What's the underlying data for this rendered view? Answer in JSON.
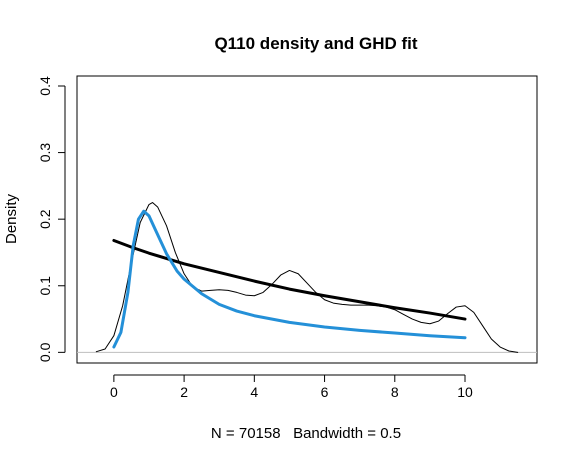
{
  "chart_data": {
    "type": "line",
    "title": "Q110 density and GHD fit",
    "xlabel": "N = 70158   Bandwidth = 0.5",
    "ylabel": "Density",
    "xlim": [
      -1.05,
      12.05
    ],
    "ylim": [
      -0.016,
      0.415
    ],
    "x_ticks": [
      0,
      2,
      4,
      6,
      8,
      10
    ],
    "y_ticks": [
      0.0,
      0.1,
      0.2,
      0.3,
      0.4
    ],
    "x_tick_labels": [
      "0",
      "2",
      "4",
      "6",
      "8",
      "10"
    ],
    "y_tick_labels": [
      "0.0",
      "0.1",
      "0.2",
      "0.3",
      "0.4"
    ],
    "grid": false,
    "legend": "none",
    "series": [
      {
        "color": "#000000",
        "line_width": 1,
        "x": [
          -0.5,
          -0.25,
          0.0,
          0.25,
          0.5,
          0.75,
          1.0,
          1.1,
          1.25,
          1.5,
          1.75,
          2.0,
          2.25,
          2.5,
          2.75,
          3.0,
          3.25,
          3.5,
          3.75,
          4.0,
          4.25,
          4.5,
          4.75,
          5.0,
          5.25,
          5.5,
          5.75,
          6.0,
          6.25,
          6.5,
          6.75,
          7.0,
          7.25,
          7.5,
          7.75,
          8.0,
          8.25,
          8.5,
          8.75,
          9.0,
          9.25,
          9.5,
          9.75,
          10.0,
          10.25,
          10.5,
          10.75,
          11.0,
          11.25,
          11.5
        ],
        "y": [
          0.001,
          0.005,
          0.025,
          0.07,
          0.135,
          0.195,
          0.222,
          0.225,
          0.218,
          0.19,
          0.15,
          0.118,
          0.098,
          0.092,
          0.093,
          0.094,
          0.093,
          0.09,
          0.086,
          0.085,
          0.09,
          0.102,
          0.116,
          0.123,
          0.118,
          0.104,
          0.09,
          0.079,
          0.074,
          0.072,
          0.071,
          0.071,
          0.071,
          0.07,
          0.068,
          0.064,
          0.057,
          0.05,
          0.045,
          0.043,
          0.047,
          0.058,
          0.068,
          0.07,
          0.06,
          0.04,
          0.02,
          0.008,
          0.002,
          0.0
        ]
      },
      {
        "color": "#000000",
        "line_width": 3,
        "x": [
          0.0,
          0.5,
          1.0,
          2.0,
          3.0,
          4.0,
          5.0,
          6.0,
          7.0,
          8.0,
          9.0,
          10.0
        ],
        "y": [
          0.168,
          0.158,
          0.149,
          0.133,
          0.12,
          0.107,
          0.095,
          0.085,
          0.076,
          0.067,
          0.059,
          0.05
        ]
      },
      {
        "color": "#2490d8",
        "line_width": 3,
        "x": [
          0.0,
          0.2,
          0.4,
          0.55,
          0.7,
          0.85,
          1.0,
          1.2,
          1.5,
          1.8,
          2.0,
          2.5,
          3.0,
          3.5,
          4.0,
          5.0,
          6.0,
          7.0,
          8.0,
          9.0,
          10.0
        ],
        "y": [
          0.008,
          0.03,
          0.09,
          0.16,
          0.2,
          0.212,
          0.205,
          0.182,
          0.148,
          0.122,
          0.11,
          0.088,
          0.072,
          0.062,
          0.055,
          0.045,
          0.038,
          0.033,
          0.029,
          0.025,
          0.022
        ]
      }
    ]
  }
}
